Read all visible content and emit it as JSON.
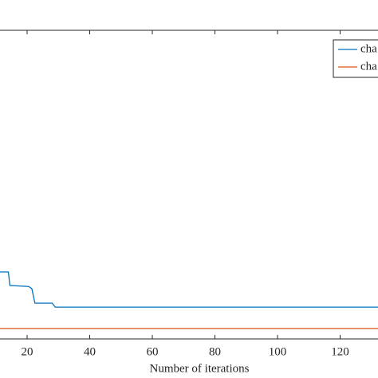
{
  "chart_data": {
    "type": "line",
    "x_label": "Number of iterations",
    "xlim": [
      11.34,
      132.1
    ],
    "xticks": [
      20,
      40,
      60,
      80,
      100,
      120
    ],
    "ylim": [
      0,
      100
    ],
    "grid": false,
    "legend": "upper right",
    "series": [
      {
        "name": "cha",
        "color": "#0072bd",
        "x": [
          11.34,
          14,
          14.5,
          20.5,
          21.5,
          22.5,
          28,
          29,
          132.1
        ],
        "values": [
          21.7,
          21.7,
          17.3,
          17.0,
          16.3,
          11.6,
          11.6,
          10.3,
          10.3
        ]
      },
      {
        "name": "cha",
        "color": "#d95319",
        "x": [
          11.34,
          132.1
        ],
        "values": [
          3.4,
          3.4
        ]
      }
    ]
  }
}
